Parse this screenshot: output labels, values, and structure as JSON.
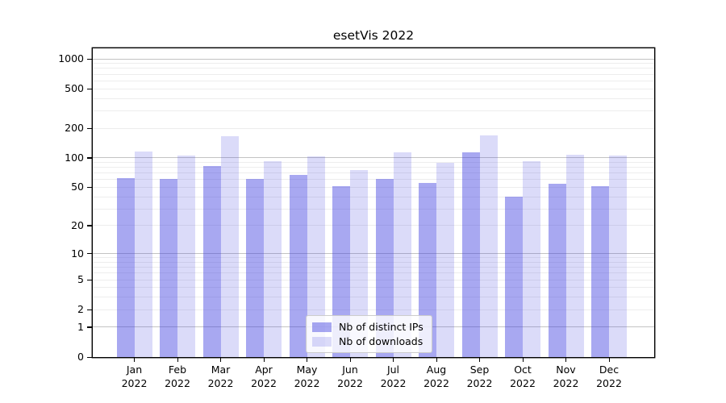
{
  "chart_data": {
    "type": "bar",
    "title": "esetVis 2022",
    "categories": [
      "Jan",
      "Feb",
      "Mar",
      "Apr",
      "May",
      "Jun",
      "Jul",
      "Aug",
      "Sep",
      "Oct",
      "Nov",
      "Dec"
    ],
    "category_year": "2022",
    "series": [
      {
        "name": "Nb of distinct IPs",
        "color": "rgba(62,62,224,0.45)",
        "values": [
          62,
          61,
          82,
          61,
          67,
          51,
          61,
          55,
          114,
          40,
          54,
          51
        ]
      },
      {
        "name": "Nb of downloads",
        "color": "rgba(62,62,224,0.19)",
        "values": [
          117,
          105,
          165,
          92,
          103,
          75,
          115,
          90,
          170,
          93,
          107,
          105
        ]
      }
    ],
    "xlabel": "",
    "ylabel": "",
    "yscale": "log1p",
    "ylim": [
      0,
      1276
    ],
    "ytick_values": [
      0,
      1,
      2,
      5,
      10,
      20,
      50,
      100,
      200,
      500,
      1000
    ],
    "ytick_labels": [
      "0",
      "1",
      "2",
      "5",
      "10",
      "20",
      "50",
      "100",
      "200",
      "500",
      "1000"
    ],
    "grid": true,
    "grid_major_color": "#c3c3c3",
    "grid_minor_color": "#ededed",
    "legend_position": "lower center",
    "legend_items": [
      "Nb of distinct IPs",
      "Nb of downloads"
    ]
  }
}
